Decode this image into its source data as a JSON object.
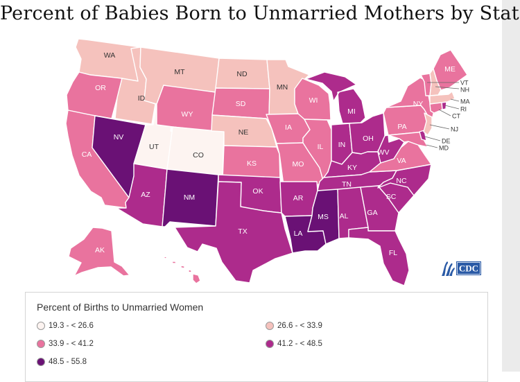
{
  "title": "Percent of Babies Born to Unmarried Mothers by State",
  "colors": {
    "c1": "#fdf4f1",
    "c2": "#f5c2bd",
    "c3": "#e9739e",
    "c4": "#ad2b8c",
    "c5": "#6a1175"
  },
  "legend": {
    "title": "Percent of Births to Unmarried Women",
    "items": [
      {
        "label": "19.3 - < 26.6",
        "class": "c1"
      },
      {
        "label": "26.6 - < 33.9",
        "class": "c2"
      },
      {
        "label": "33.9 - < 41.2",
        "class": "c3"
      },
      {
        "label": "41.2 - < 48.5",
        "class": "c4"
      },
      {
        "label": "48.5 - 55.8",
        "class": "c5"
      }
    ]
  },
  "logo": {
    "text": "CDC",
    "icon": "cdc-logo-icon"
  },
  "states": {
    "WA": "c2",
    "OR": "c3",
    "CA": "c3",
    "ID": "c2",
    "NV": "c5",
    "UT": "c1",
    "AZ": "c4",
    "MT": "c2",
    "WY": "c3",
    "CO": "c1",
    "NM": "c5",
    "ND": "c2",
    "SD": "c3",
    "NE": "c2",
    "KS": "c3",
    "OK": "c4",
    "TX": "c4",
    "MN": "c2",
    "IA": "c3",
    "MO": "c3",
    "AR": "c4",
    "LA": "c5",
    "WI": "c3",
    "IL": "c3",
    "MI": "c4",
    "IN": "c4",
    "OH": "c4",
    "KY": "c4",
    "TN": "c4",
    "MS": "c5",
    "AL": "c4",
    "GA": "c4",
    "FL": "c4",
    "SC": "c4",
    "NC": "c4",
    "VA": "c3",
    "WV": "c4",
    "PA": "c3",
    "NY": "c3",
    "ME": "c3",
    "VT": "c3",
    "NH": "c2",
    "MA": "c2",
    "RI": "c4",
    "CT": "c3",
    "NJ": "c2",
    "DE": "c4",
    "MD": "c3",
    "AK": "c3",
    "HI": "c3"
  }
}
